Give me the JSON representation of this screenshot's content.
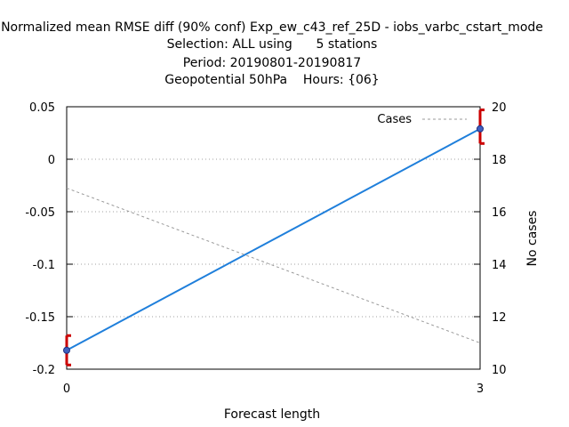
{
  "chart_data": {
    "type": "line",
    "title_lines": [
      "Normalized mean RMSE diff (90% conf) Exp_ew_c43_ref_25D - iobs_varbc_cstart_mode",
      "Selection: ALL using      5 stations",
      "Period: 20190801-20190817",
      "Geopotential 50hPa    Hours: {06}"
    ],
    "xlabel": "Forecast length",
    "ylabel": "",
    "y2label": "No cases",
    "xlim": [
      0,
      3
    ],
    "ylim": [
      -0.2,
      0.05
    ],
    "y2lim": [
      10,
      20
    ],
    "x_ticks": [
      0,
      3
    ],
    "y_ticks": [
      0.05,
      0,
      -0.05,
      -0.1,
      -0.15,
      -0.2
    ],
    "y_tick_labels": [
      "0.05",
      "0",
      "-0.05",
      "-0.1",
      "-0.15",
      "-0.2"
    ],
    "y2_ticks": [
      20,
      18,
      16,
      14,
      12,
      10
    ],
    "y2_tick_labels": [
      "20",
      "18",
      "16",
      "14",
      "12",
      "10"
    ],
    "grid": "horizontal dotted",
    "legend_position": "top-right",
    "series": [
      {
        "name": "",
        "axis": "left",
        "style": "solid",
        "color": "#1f7fdb",
        "x": [
          0,
          3
        ],
        "y": [
          -0.182,
          0.029
        ],
        "error_low": [
          -0.196,
          0.015
        ],
        "error_high": [
          -0.168,
          0.047
        ],
        "error_color": "#cc0000"
      },
      {
        "name": "Cases",
        "axis": "right",
        "style": "dashed",
        "color": "#999999",
        "x": [
          0,
          3
        ],
        "y": [
          16.9,
          11.0
        ]
      }
    ]
  }
}
